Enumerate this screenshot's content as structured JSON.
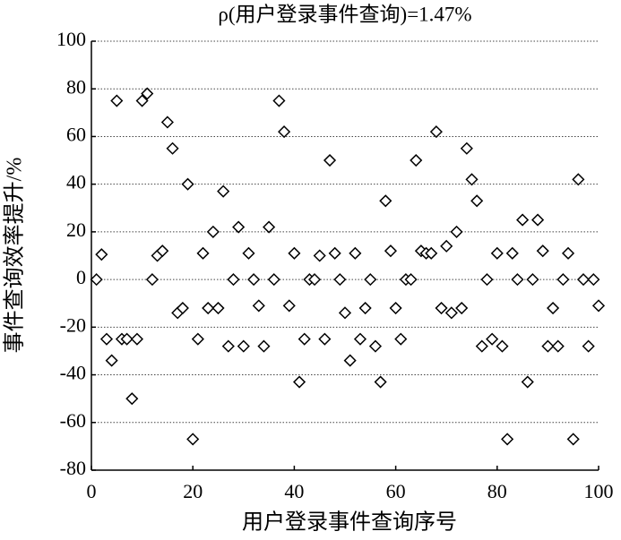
{
  "chart_data": {
    "type": "scatter",
    "title": "ρ(用户登录事件查询)=1.47%",
    "x_label": "用户登录事件查询序号",
    "y_label": "事件查询效率提升/%",
    "marker": "diamond",
    "color": "#000000",
    "grid": true,
    "xlim": [
      0,
      100
    ],
    "xticks": [
      0,
      20,
      40,
      60,
      80,
      100
    ],
    "ylim": [
      -80,
      100
    ],
    "yticks": [
      -80,
      -60,
      -40,
      -20,
      0,
      20,
      40,
      60,
      80,
      100
    ],
    "x": [
      1,
      2,
      3,
      4,
      5,
      6,
      7,
      8,
      9,
      10,
      11,
      12,
      13,
      14,
      15,
      16,
      17,
      18,
      19,
      20,
      21,
      22,
      23,
      24,
      25,
      26,
      27,
      28,
      29,
      30,
      31,
      32,
      33,
      34,
      35,
      36,
      37,
      38,
      39,
      40,
      41,
      42,
      43,
      44,
      45,
      46,
      47,
      48,
      49,
      50,
      51,
      52,
      53,
      54,
      55,
      56,
      57,
      58,
      59,
      60,
      61,
      62,
      63,
      64,
      65,
      66,
      67,
      68,
      69,
      70,
      71,
      72,
      73,
      74,
      75,
      76,
      77,
      78,
      79,
      80,
      81,
      82,
      83,
      84,
      85,
      86,
      87,
      88,
      89,
      90,
      91,
      92,
      93,
      94,
      95,
      96,
      97,
      98,
      99,
      100
    ],
    "values": [
      0,
      10.5,
      -25,
      -34,
      75,
      -25,
      -25,
      -50,
      -25,
      75,
      78,
      0,
      10,
      12,
      66,
      55,
      -14,
      -12,
      40,
      -67,
      -25,
      11,
      -12,
      20,
      -12,
      37,
      -28,
      0,
      22,
      -28,
      11,
      0,
      -11,
      -28,
      22,
      0,
      75,
      62,
      -11,
      11,
      -43,
      -25,
      0,
      0,
      10,
      -25,
      50,
      11,
      0,
      -14,
      -34,
      11,
      -25,
      -12,
      0,
      -28,
      -43,
      33,
      12,
      -12,
      -25,
      0,
      0,
      50,
      12,
      11,
      11,
      62,
      -12,
      14,
      -14,
      20,
      -12,
      55,
      42,
      33,
      -28,
      0,
      -25,
      11,
      -28,
      -67,
      11,
      0,
      25,
      -43,
      0,
      25,
      12,
      -28,
      -12,
      -28,
      0,
      11,
      -67,
      42,
      0,
      -28,
      0,
      -11
    ]
  }
}
